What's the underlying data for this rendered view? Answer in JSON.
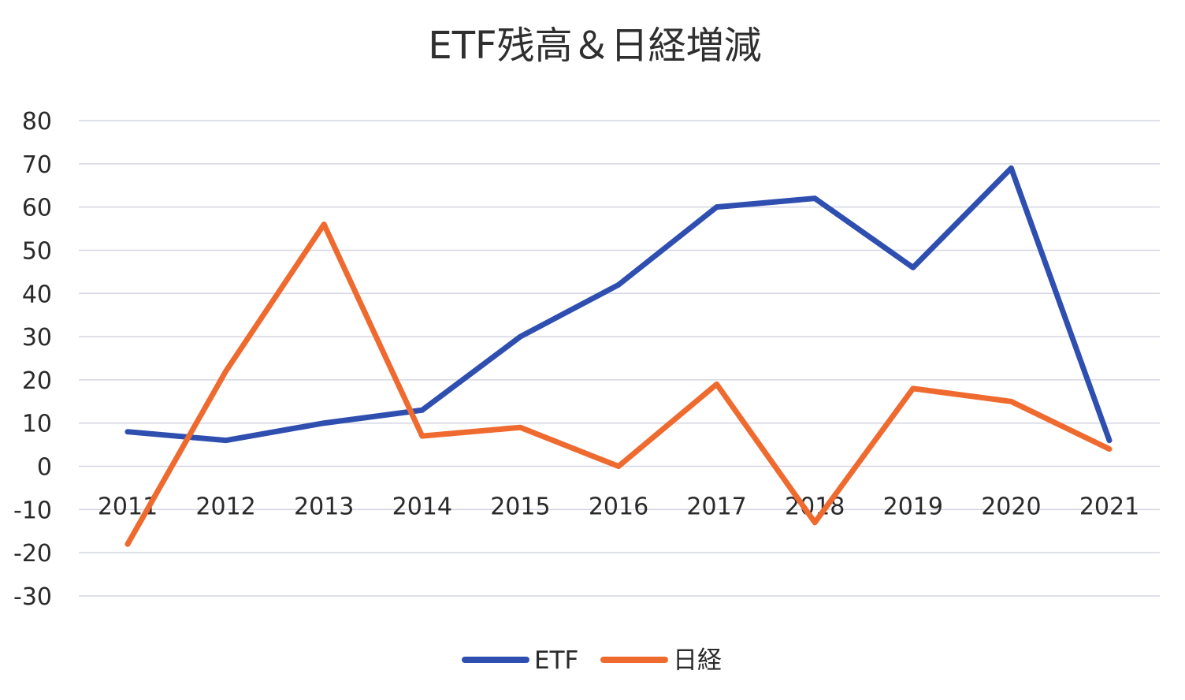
{
  "chart_data": {
    "type": "line",
    "title": "ETF残高＆日経増減",
    "categories": [
      "2011",
      "2012",
      "2013",
      "2014",
      "2015",
      "2016",
      "2017",
      "2018",
      "2019",
      "2020",
      "2021"
    ],
    "series": [
      {
        "name": "ETF",
        "color": "#2f4fb0",
        "values": [
          8,
          6,
          10,
          13,
          30,
          42,
          60,
          62,
          46,
          69,
          6
        ]
      },
      {
        "name": "日経",
        "color": "#ef6a2f",
        "values": [
          -18,
          22,
          56,
          7,
          9,
          0,
          19,
          -13,
          18,
          15,
          4
        ]
      }
    ],
    "yticks": [
      "80",
      "70",
      "60",
      "50",
      "40",
      "30",
      "20",
      "10",
      "0",
      "-10",
      "-20",
      "-30"
    ],
    "ylim": [
      -30,
      80
    ],
    "grid": true,
    "legend": "bottom-center"
  }
}
